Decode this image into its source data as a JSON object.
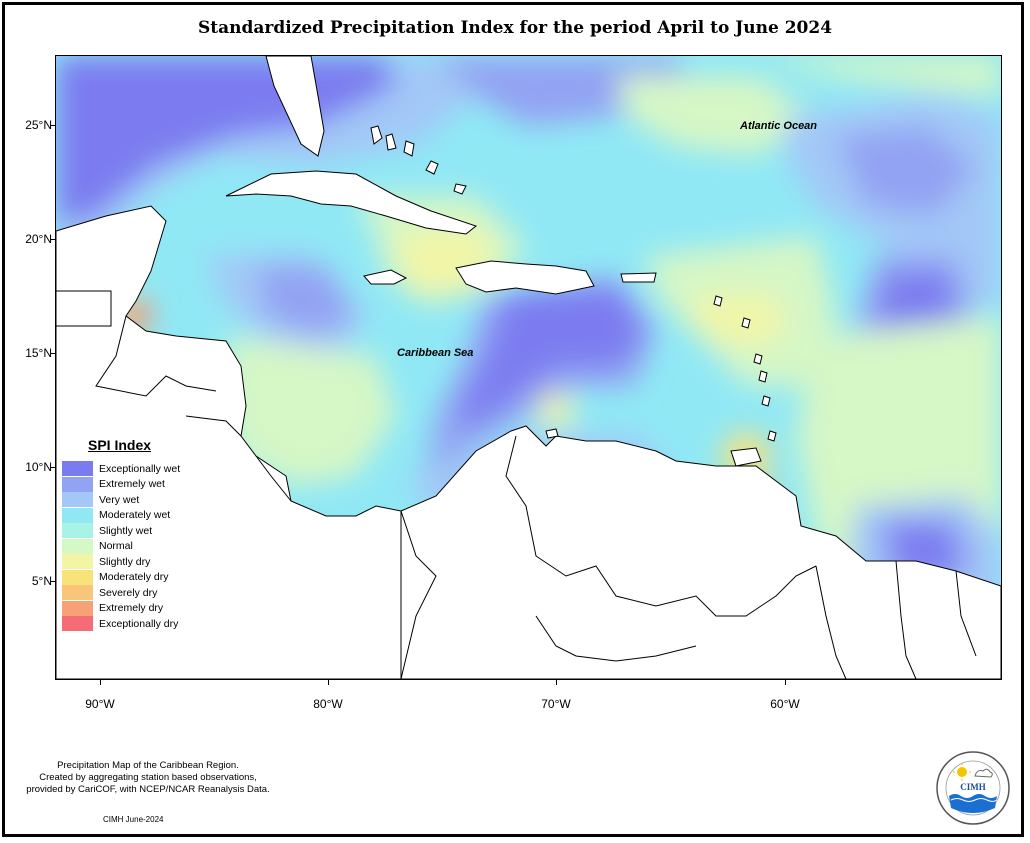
{
  "title": "Standardized Precipitation Index for the period April to June 2024",
  "map": {
    "ocean_labels": [
      "Atlantic Ocean",
      "Caribbean Sea"
    ],
    "lat_labels": [
      "25°N",
      "20°N",
      "15°N",
      "10°N",
      "5°N"
    ],
    "lon_labels": [
      "90°W",
      "80°W",
      "70°W",
      "60°W"
    ]
  },
  "legend": {
    "title": "SPI Index",
    "items": [
      {
        "label": "Exceptionally wet",
        "color": "#7b7bf0"
      },
      {
        "label": "Extremely wet",
        "color": "#93a3f3"
      },
      {
        "label": "Very wet",
        "color": "#a3c8f7"
      },
      {
        "label": "Moderately wet",
        "color": "#90e8f5"
      },
      {
        "label": "Slightly wet",
        "color": "#a8f2e6"
      },
      {
        "label": "Normal",
        "color": "#d6f7c6"
      },
      {
        "label": "Slightly dry",
        "color": "#f2f5a6"
      },
      {
        "label": "Moderately dry",
        "color": "#f8e27a"
      },
      {
        "label": "Severely dry",
        "color": "#f9c57a"
      },
      {
        "label": "Extremely dry",
        "color": "#f7a276"
      },
      {
        "label": "Exceptionally dry",
        "color": "#f46c75"
      }
    ]
  },
  "footnote": {
    "line1": "Precipitation Map of the Caribbean Region.",
    "line2": "Created by aggregating station based observations,",
    "line3": "provided by CariCOF, with NCEP/NCAR Reanalysis Data."
  },
  "credit": "CIMH June-2024",
  "logo": {
    "text": "CIMH",
    "ring_text": "Caribbean Institute for Meteorology and Hydrology"
  }
}
